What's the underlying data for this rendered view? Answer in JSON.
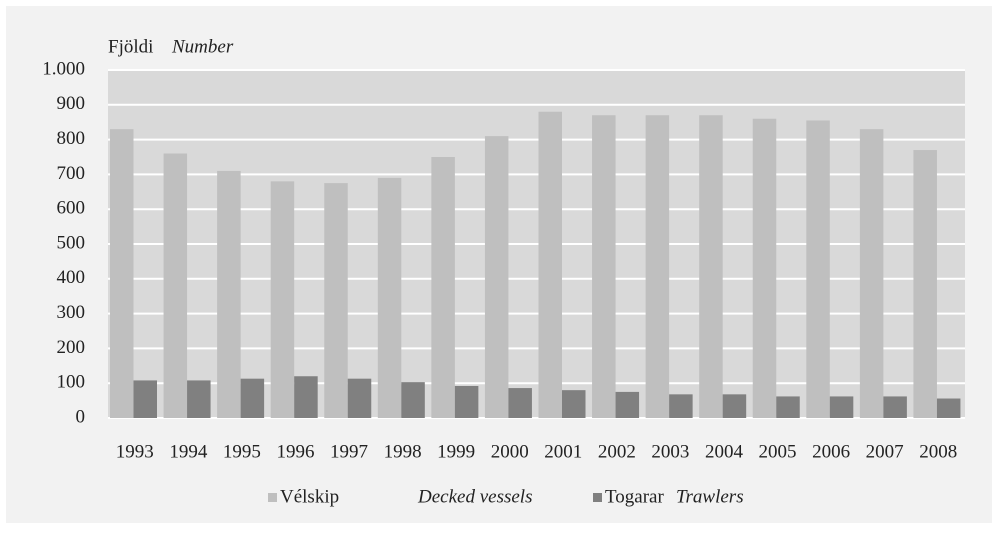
{
  "chart_data": {
    "type": "bar",
    "ylabel": "Fjöldi",
    "ylabel_en": "Number",
    "categories": [
      "1993",
      "1994",
      "1995",
      "1996",
      "1997",
      "1998",
      "1999",
      "2000",
      "2001",
      "2002",
      "2003",
      "2004",
      "2005",
      "2006",
      "2007",
      "2008"
    ],
    "series": [
      {
        "name": "Vélskip",
        "name_en": "Decked vessels",
        "color": "#bfbfbf",
        "values": [
          830,
          760,
          710,
          680,
          675,
          690,
          750,
          810,
          880,
          870,
          870,
          870,
          860,
          855,
          830,
          770
        ]
      },
      {
        "name": "Togarar",
        "name_en": "Trawlers",
        "color": "#808080",
        "values": [
          108,
          108,
          113,
          120,
          113,
          103,
          92,
          86,
          80,
          75,
          68,
          68,
          62,
          62,
          62,
          56
        ]
      }
    ],
    "ylim": [
      0,
      1000
    ],
    "yticks": [
      0,
      100,
      200,
      300,
      400,
      500,
      600,
      700,
      800,
      900,
      {
        "value": 1000,
        "label": "1.000"
      }
    ],
    "grid": true
  }
}
